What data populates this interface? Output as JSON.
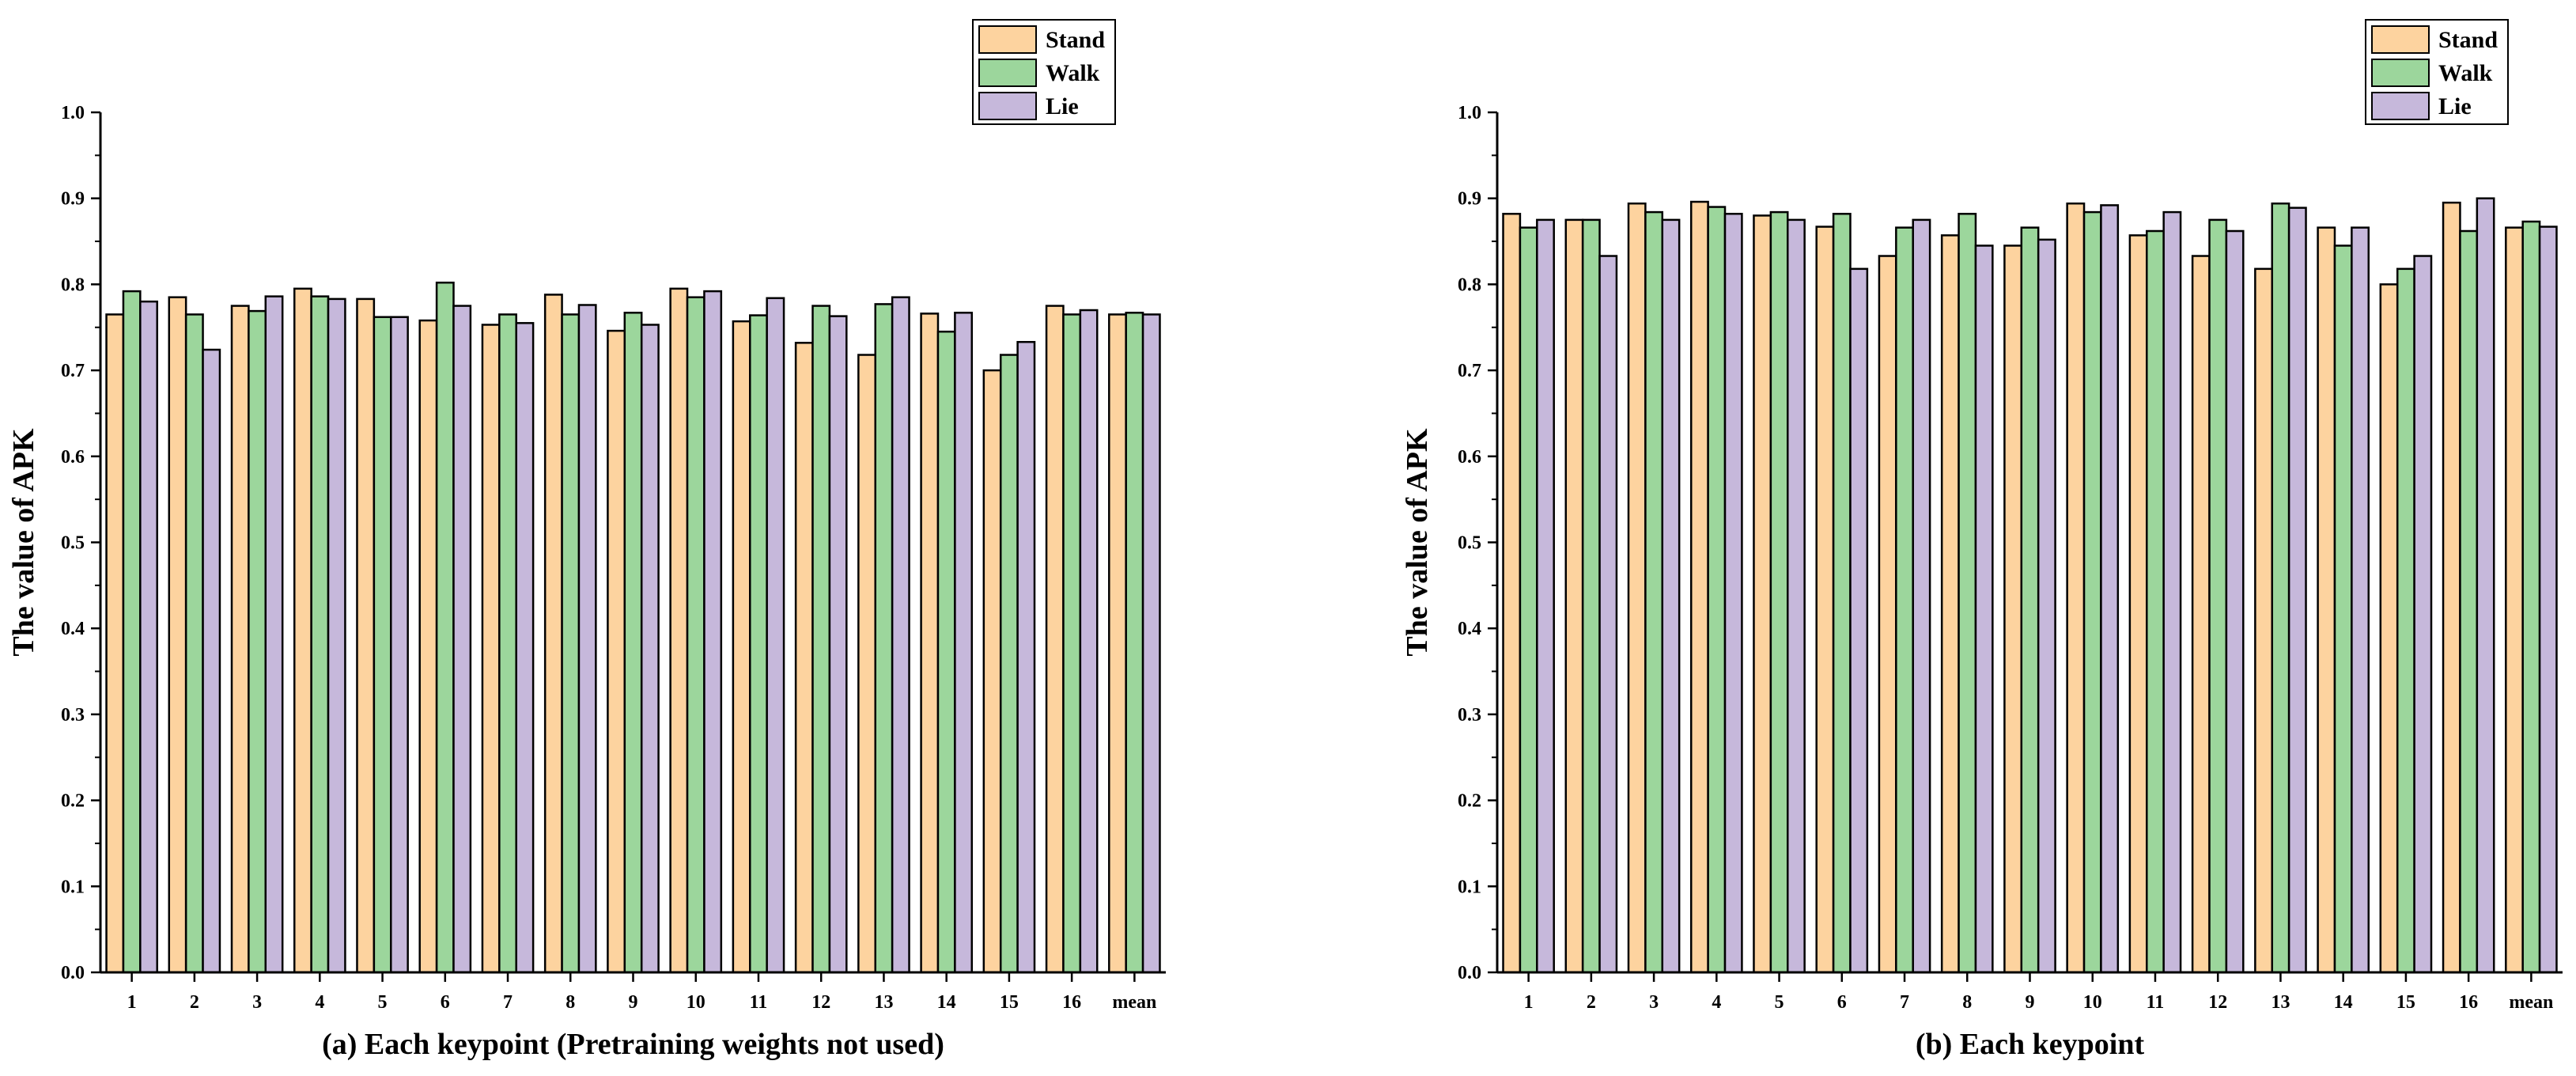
{
  "chart_data": [
    {
      "type": "bar",
      "id": "a",
      "categories": [
        "1",
        "2",
        "3",
        "4",
        "5",
        "6",
        "7",
        "8",
        "9",
        "10",
        "11",
        "12",
        "13",
        "14",
        "15",
        "16",
        "mean"
      ],
      "series": [
        {
          "name": "Stand",
          "color": "#FDD39F",
          "values": [
            0.765,
            0.785,
            0.775,
            0.795,
            0.783,
            0.758,
            0.753,
            0.788,
            0.746,
            0.795,
            0.757,
            0.732,
            0.718,
            0.766,
            0.7,
            0.775,
            0.765
          ]
        },
        {
          "name": "Walk",
          "color": "#9CD69C",
          "values": [
            0.792,
            0.765,
            0.769,
            0.786,
            0.762,
            0.802,
            0.765,
            0.765,
            0.767,
            0.785,
            0.764,
            0.775,
            0.777,
            0.745,
            0.718,
            0.765,
            0.767
          ]
        },
        {
          "name": "Lie",
          "color": "#C6B8DB",
          "values": [
            0.78,
            0.724,
            0.786,
            0.783,
            0.762,
            0.775,
            0.755,
            0.776,
            0.753,
            0.792,
            0.784,
            0.763,
            0.785,
            0.767,
            0.733,
            0.77,
            0.765
          ]
        }
      ],
      "title": "",
      "xlabel": "(a) Each keypoint (Pretraining weights not used)",
      "ylabel": "The value of APK",
      "ylim": [
        0,
        1.0
      ],
      "yticks": [
        "0.0",
        "0.1",
        "0.2",
        "0.3",
        "0.4",
        "0.5",
        "0.6",
        "0.7",
        "0.8",
        "0.9",
        "1.0"
      ],
      "legend_position": "top-right",
      "grid": false
    },
    {
      "type": "bar",
      "id": "b",
      "categories": [
        "1",
        "2",
        "3",
        "4",
        "5",
        "6",
        "7",
        "8",
        "9",
        "10",
        "11",
        "12",
        "13",
        "14",
        "15",
        "16",
        "mean"
      ],
      "series": [
        {
          "name": "Stand",
          "color": "#FDD39F",
          "values": [
            0.882,
            0.875,
            0.894,
            0.896,
            0.88,
            0.867,
            0.833,
            0.857,
            0.845,
            0.894,
            0.857,
            0.833,
            0.818,
            0.866,
            0.8,
            0.895,
            0.866
          ]
        },
        {
          "name": "Walk",
          "color": "#9CD69C",
          "values": [
            0.866,
            0.875,
            0.884,
            0.89,
            0.884,
            0.882,
            0.866,
            0.882,
            0.866,
            0.884,
            0.862,
            0.875,
            0.894,
            0.845,
            0.818,
            0.862,
            0.873
          ]
        },
        {
          "name": "Lie",
          "color": "#C6B8DB",
          "values": [
            0.875,
            0.833,
            0.875,
            0.882,
            0.875,
            0.818,
            0.875,
            0.845,
            0.852,
            0.892,
            0.884,
            0.862,
            0.889,
            0.866,
            0.833,
            0.9,
            0.867
          ]
        }
      ],
      "title": "",
      "xlabel": "(b) Each keypoint",
      "ylabel": "The value of APK",
      "ylim": [
        0,
        1.0
      ],
      "yticks": [
        "0.0",
        "0.1",
        "0.2",
        "0.3",
        "0.4",
        "0.5",
        "0.6",
        "0.7",
        "0.8",
        "0.9",
        "1.0"
      ],
      "legend_position": "top-right",
      "grid": false
    }
  ]
}
